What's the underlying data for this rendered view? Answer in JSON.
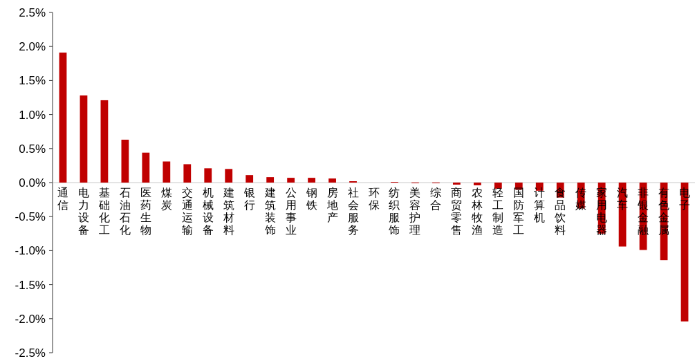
{
  "chart_data": {
    "type": "bar",
    "categories": [
      "通信",
      "电力设备",
      "基础化工",
      "石油石化",
      "医药生物",
      "煤炭",
      "交通运输",
      "机械设备",
      "建筑材料",
      "银行",
      "建筑装饰",
      "公用事业",
      "钢铁",
      "房地产",
      "社会服务",
      "环保",
      "纺织服饰",
      "美容护理",
      "综合",
      "商贸零售",
      "农林牧渔",
      "轻工制造",
      "国防军工",
      "计算机",
      "食品饮料",
      "传媒",
      "家用电器",
      "汽车",
      "非银金融",
      "有色金属",
      "电子"
    ],
    "values": [
      1.91,
      1.28,
      1.21,
      0.63,
      0.44,
      0.31,
      0.27,
      0.21,
      0.2,
      0.11,
      0.08,
      0.07,
      0.07,
      0.06,
      0.02,
      0,
      0.01,
      -0.01,
      -0.01,
      -0.03,
      -0.04,
      -0.09,
      -0.1,
      -0.12,
      -0.22,
      -0.38,
      -0.75,
      -0.94,
      -0.99,
      -1.14,
      -2.04
    ],
    "color": "#c00000",
    "ylim": [
      -2.5,
      2.5
    ],
    "yticks": [
      {
        "value": -2.5,
        "label": "-2.5%"
      },
      {
        "value": -2,
        "label": "-2.0%"
      },
      {
        "value": -1.5,
        "label": "-1.5%"
      },
      {
        "value": -1,
        "label": "-1.0%"
      },
      {
        "value": -0.5,
        "label": "-0.5%"
      },
      {
        "value": 0,
        "label": "0.0%"
      },
      {
        "value": 0.5,
        "label": "0.5%"
      },
      {
        "value": 1,
        "label": "1.0%"
      },
      {
        "value": 1.5,
        "label": "1.5%"
      },
      {
        "value": 2,
        "label": "2.0%"
      },
      {
        "value": 2.5,
        "label": "2.5%"
      }
    ],
    "grid": false
  }
}
